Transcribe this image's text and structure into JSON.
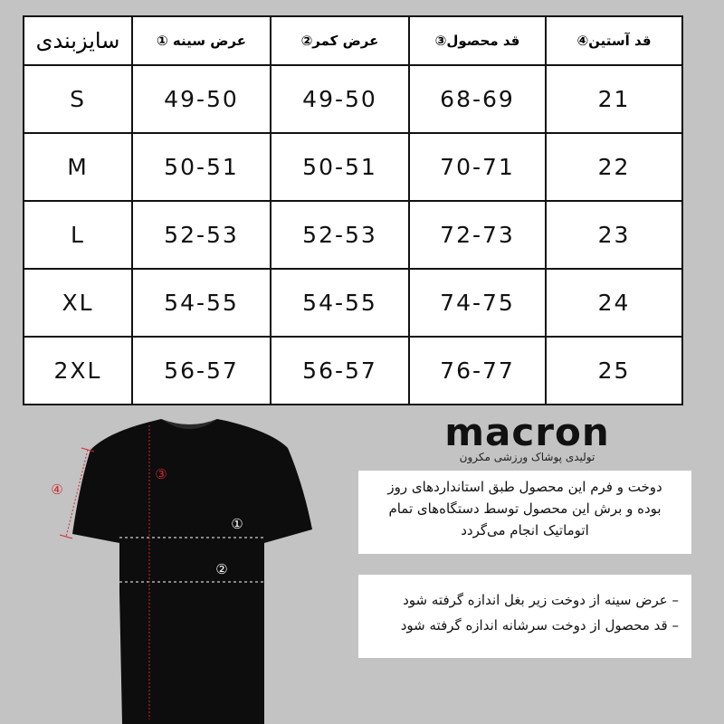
{
  "table": {
    "headers": [
      "سایزبندی",
      "عرض سینه ①",
      "عرض کمر②",
      "قد محصول③",
      "قد آستین④"
    ],
    "rows": [
      [
        "S",
        "49-50",
        "49-50",
        "68-69",
        "21"
      ],
      [
        "M",
        "50-51",
        "50-51",
        "70-71",
        "22"
      ],
      [
        "L",
        "52-53",
        "52-53",
        "72-73",
        "23"
      ],
      [
        "XL",
        "54-55",
        "54-55",
        "74-75",
        "24"
      ],
      [
        "2XL",
        "56-57",
        "56-57",
        "76-77",
        "25"
      ]
    ]
  },
  "logo": {
    "word": "macron",
    "subtitle": "تولیدی پوشاک ورزشی مکرون"
  },
  "info_box": {
    "lines": [
      "دوخت و فرم این محصول طبق استانداردهای روز",
      "بوده و برش این محصول توسط دستگاه‌های تمام",
      "اتوماتیک انجام می‌گردد"
    ]
  },
  "notes_box": {
    "lines": [
      "– عرض سینه از دوخت زیر بغل اندازه گرفته شود",
      "– قد محصول از دوخت سرشانه اندازه گرفته شود"
    ]
  },
  "diagram": {
    "markers": [
      "①",
      "②",
      "③",
      "④"
    ],
    "marker_color": "#d0282e",
    "shirt_color": "#0d0d0d"
  }
}
